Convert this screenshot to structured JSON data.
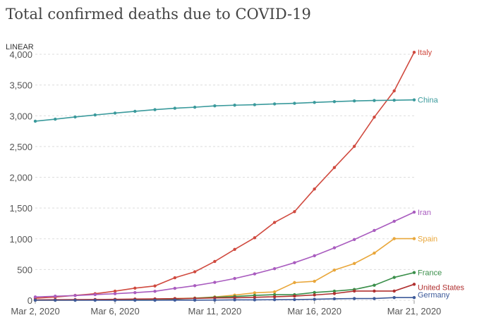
{
  "chart_data": {
    "type": "line",
    "title": "Total confirmed deaths due to COVID-19",
    "scale_label": "LINEAR",
    "ylim": [
      0,
      4000
    ],
    "yticks": [
      0,
      500,
      1000,
      1500,
      2000,
      2500,
      3000,
      3500,
      4000
    ],
    "ytick_labels": [
      "0",
      "500",
      "1,000",
      "1,500",
      "2,000",
      "2,500",
      "3,000",
      "3,500",
      "4,000"
    ],
    "x": [
      "Mar 2, 2020",
      "Mar 3, 2020",
      "Mar 4, 2020",
      "Mar 5, 2020",
      "Mar 6, 2020",
      "Mar 7, 2020",
      "Mar 8, 2020",
      "Mar 9, 2020",
      "Mar 10, 2020",
      "Mar 11, 2020",
      "Mar 12, 2020",
      "Mar 13, 2020",
      "Mar 14, 2020",
      "Mar 15, 2020",
      "Mar 16, 2020",
      "Mar 17, 2020",
      "Mar 18, 2020",
      "Mar 19, 2020",
      "Mar 20, 2020",
      "Mar 21, 2020"
    ],
    "xtick_labels": [
      "Mar 2, 2020",
      "Mar 6, 2020",
      "Mar 11, 2020",
      "Mar 16, 2020",
      "Mar 21, 2020"
    ],
    "xtick_dates": [
      "Mar 2, 2020",
      "Mar 6, 2020",
      "Mar 11, 2020",
      "Mar 16, 2020",
      "Mar 21, 2020"
    ],
    "grid": true,
    "series": [
      {
        "name": "Italy",
        "color": "#d04a3f",
        "values": [
          34,
          52,
          79,
          107,
          148,
          197,
          233,
          366,
          463,
          631,
          827,
          1016,
          1266,
          1441,
          1809,
          2158,
          2503,
          2978,
          3405,
          4032
        ]
      },
      {
        "name": "China",
        "color": "#3a9a9c",
        "values": [
          2912,
          2945,
          2981,
          3013,
          3044,
          3072,
          3100,
          3123,
          3139,
          3161,
          3172,
          3180,
          3193,
          3203,
          3217,
          3230,
          3241,
          3249,
          3253,
          3259
        ]
      },
      {
        "name": "Iran",
        "color": "#a95cbf",
        "values": [
          54,
          66,
          77,
          92,
          107,
          124,
          145,
          194,
          237,
          291,
          354,
          429,
          514,
          611,
          724,
          853,
          988,
          1135,
          1284,
          1433
        ]
      },
      {
        "name": "Spain",
        "color": "#e9a73b",
        "values": [
          0,
          1,
          2,
          3,
          5,
          10,
          17,
          28,
          35,
          54,
          84,
          121,
          136,
          288,
          309,
          491,
          598,
          767,
          1002,
          1002
        ]
      },
      {
        "name": "France",
        "color": "#3a8f4a",
        "values": [
          3,
          4,
          4,
          6,
          9,
          11,
          19,
          19,
          33,
          48,
          61,
          79,
          91,
          91,
          127,
          148,
          175,
          244,
          372,
          450
        ]
      },
      {
        "name": "United States",
        "color": "#b03030",
        "values": [
          6,
          9,
          11,
          12,
          15,
          19,
          22,
          26,
          30,
          38,
          41,
          48,
          57,
          68,
          86,
          109,
          150,
          150,
          150,
          260
        ]
      },
      {
        "name": "Germany",
        "color": "#3d5a9a",
        "values": [
          0,
          0,
          0,
          0,
          0,
          0,
          0,
          2,
          2,
          3,
          6,
          7,
          9,
          11,
          17,
          24,
          28,
          28,
          44,
          44
        ]
      }
    ]
  }
}
